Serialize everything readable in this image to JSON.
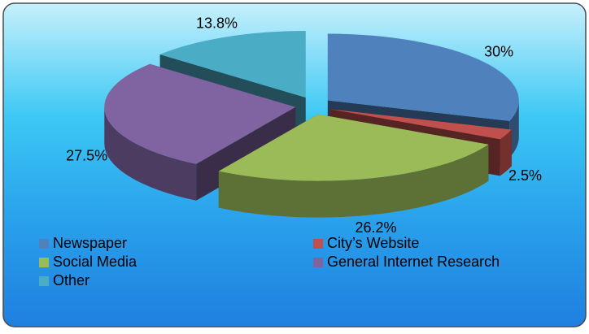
{
  "chart_data": {
    "type": "pie",
    "categories": [
      "Newspaper",
      "City’s Website",
      "Social Media",
      "General Internet Research",
      "Other"
    ],
    "values": [
      30,
      2.5,
      26.2,
      27.5,
      13.8
    ],
    "value_labels": [
      "30%",
      "2.5%",
      "26.2%",
      "27.5%",
      "13.8%"
    ],
    "colors": [
      "#4f81bd",
      "#c0504d",
      "#9bbb59",
      "#8064a2",
      "#4bacc6"
    ],
    "legend": "bottom"
  }
}
